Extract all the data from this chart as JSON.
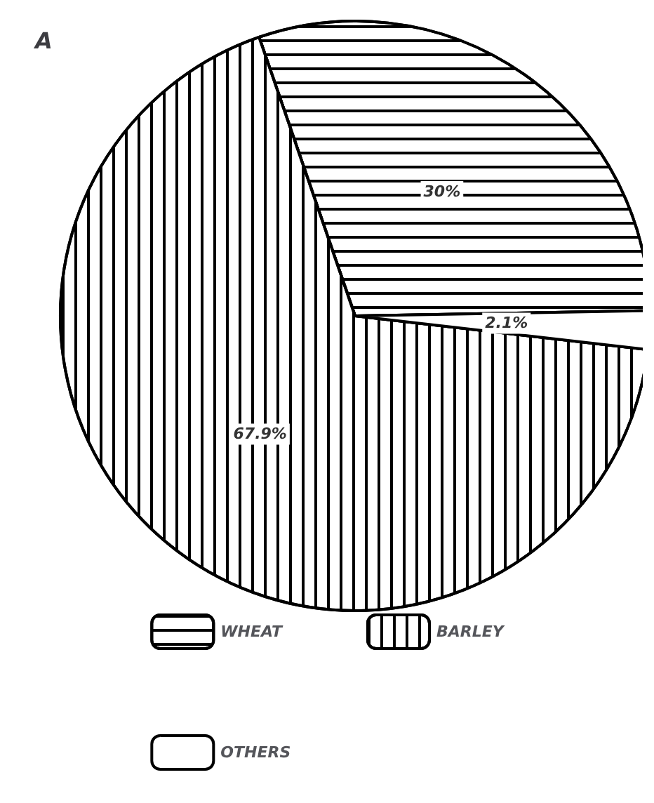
{
  "chart_data": {
    "type": "pie",
    "title": "A",
    "categories": [
      "WHEAT",
      "BARLEY",
      "OTHERS"
    ],
    "values": [
      30,
      67.9,
      2.1
    ],
    "value_labels": [
      "30%",
      "67.9%",
      "2.1%"
    ],
    "colors": [
      "#ffffff",
      "#ffffff",
      "#ffffff"
    ],
    "legend": "bottom"
  }
}
